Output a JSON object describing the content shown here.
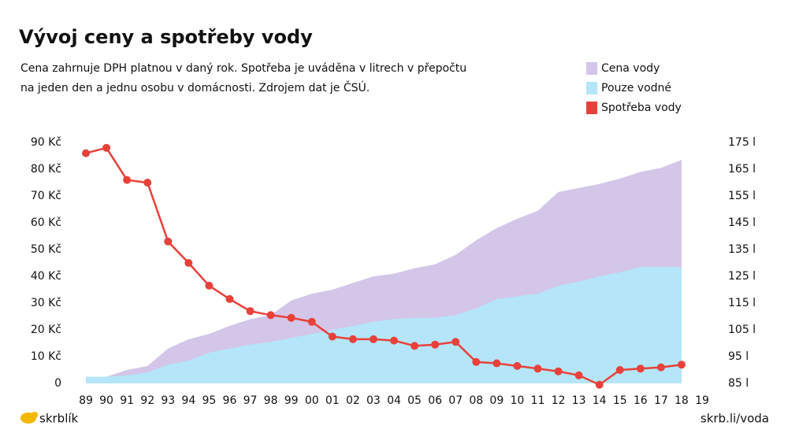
{
  "chart_data": {
    "type": "area-line",
    "title": "Vývoj ceny a spotřeby vody",
    "subtitle": [
      "Cena zahrnuje DPH platnou v daný rok. Spotřeba je uváděna v litrech v přepočtu",
      "na jeden den a jednu osobu v domácnosti. Zdrojem dat je ČSÚ."
    ],
    "brand": "skrblík",
    "source_link": "skrb.li/voda",
    "categories": [
      "89",
      "90",
      "91",
      "92",
      "93",
      "94",
      "95",
      "96",
      "97",
      "98",
      "99",
      "00",
      "01",
      "02",
      "03",
      "04",
      "05",
      "06",
      "07",
      "08",
      "09",
      "10",
      "11",
      "12",
      "13",
      "14",
      "15",
      "16",
      "17",
      "18",
      "19"
    ],
    "series": [
      {
        "name": "Cena vody",
        "color": "#d3c6e8",
        "kind": "area",
        "values": [
          2.5,
          2.5,
          5,
          6.5,
          13,
          16.5,
          18.5,
          21.5,
          24,
          25.5,
          31,
          33.5,
          35,
          37.5,
          40,
          41,
          43,
          44.5,
          48,
          53.5,
          58,
          61.5,
          64.5,
          71.5,
          73,
          74.5,
          76.5,
          79,
          80.5,
          83.5,
          null
        ]
      },
      {
        "name": "Pouze vodné",
        "color": "#b5e5f9",
        "kind": "area",
        "values": [
          2.5,
          2.5,
          3,
          4,
          7,
          8.5,
          11.5,
          13,
          14.5,
          15.5,
          17,
          18.5,
          20,
          21.5,
          23,
          24,
          24.5,
          24.5,
          25.5,
          28,
          31.5,
          32.5,
          33.5,
          36.5,
          38,
          40,
          41.5,
          43.5,
          43.5,
          43.5,
          null
        ]
      },
      {
        "name": "Spotřeba vody",
        "color": "#e8413a",
        "kind": "line",
        "axis": "y2",
        "values": [
          171,
          173,
          161,
          160,
          138,
          130,
          121.5,
          116.5,
          112,
          110.5,
          109.5,
          108,
          102.5,
          101.5,
          101.5,
          101,
          99,
          99.5,
          100.5,
          93,
          92.5,
          91.5,
          90.5,
          89.5,
          88,
          84.5,
          90,
          90.5,
          91,
          92,
          null
        ]
      }
    ],
    "ylim": [
      0,
      90
    ],
    "yticks": [
      0,
      {
        "value": 10,
        "label": "10 Kč"
      },
      {
        "value": 20,
        "label": "20 Kč"
      },
      {
        "value": 30,
        "label": "30 Kč"
      },
      {
        "value": 40,
        "label": "40 Kč"
      },
      {
        "value": 50,
        "label": "50 Kč"
      },
      {
        "value": 60,
        "label": "60 Kč"
      },
      {
        "value": 70,
        "label": "70 Kč"
      },
      {
        "value": 80,
        "label": "80 Kč"
      },
      {
        "value": 90,
        "label": "90 Kč"
      }
    ],
    "y2lim": [
      85,
      175
    ],
    "y2ticks": [
      {
        "value": 85,
        "label": "85 l"
      },
      {
        "value": 95,
        "label": "95 l"
      },
      {
        "value": 105,
        "label": "105 l"
      },
      {
        "value": 115,
        "label": "115 l"
      },
      {
        "value": 125,
        "label": "125 l"
      },
      {
        "value": 135,
        "label": "135 l"
      },
      {
        "value": 145,
        "label": "145 l"
      },
      {
        "value": 155,
        "label": "155 l"
      },
      {
        "value": 165,
        "label": "165 l"
      },
      {
        "value": 175,
        "label": "175 l"
      }
    ],
    "legend": "top-right"
  }
}
